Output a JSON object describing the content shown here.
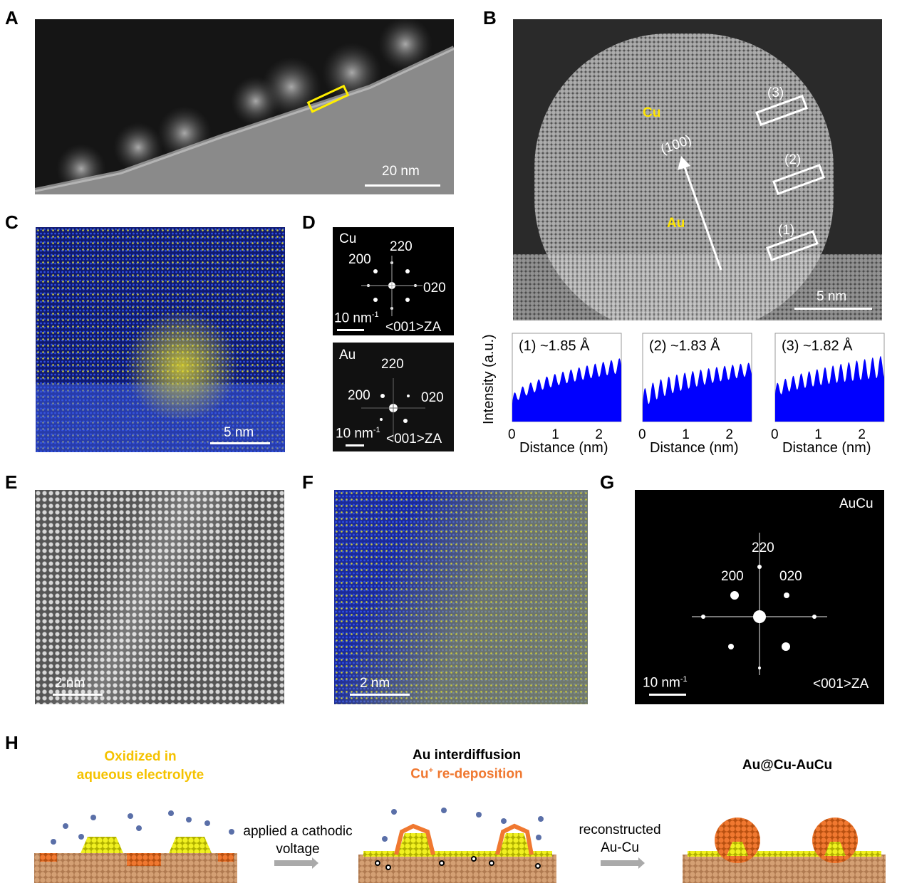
{
  "panel_labels": [
    "A",
    "B",
    "C",
    "D",
    "E",
    "F",
    "G",
    "H"
  ],
  "panelA": {
    "scale_bar": "20 nm"
  },
  "panelB": {
    "labels": {
      "cu": "Cu",
      "au": "Au",
      "direction": "(100)",
      "box1": "(1)",
      "box2": "(2)",
      "box3": "(3)"
    },
    "scale_bar": "5 nm"
  },
  "panelC": {
    "scale_bar": "5 nm"
  },
  "panelD": {
    "cu": {
      "title": "Cu",
      "s200": "200",
      "s220": "220",
      "s020": "020",
      "scale": "10 nm",
      "scale_sup": "-1",
      "za": "<001>ZA"
    },
    "au": {
      "title": "Au",
      "s200": "200",
      "s220": "220",
      "s020": "020",
      "scale": "10 nm",
      "scale_sup": "-1",
      "za": "<001>ZA"
    }
  },
  "panelE": {
    "scale_bar": "2 nm"
  },
  "panelF": {
    "scale_bar": "2 nm"
  },
  "panelG": {
    "title": "AuCu",
    "s200": "200",
    "s220": "220",
    "s020": "020",
    "scale": "10 nm",
    "scale_sup": "-1",
    "za": "<001>ZA"
  },
  "chart_data": [
    {
      "type": "area",
      "title": "(1)   ~1.85 Å",
      "xlabel": "Distance (nm)",
      "ylabel": "Intensity (a.u.)",
      "xlim": [
        0,
        2.5
      ],
      "xticks": [
        "0",
        "1",
        "2"
      ],
      "period_nm": 0.185,
      "baseline": [
        0.15,
        0.55
      ],
      "amplitude": [
        0.12,
        0.17
      ],
      "color": "#0000ff"
    },
    {
      "type": "area",
      "title": "(2)   ~1.83 Å",
      "xlabel": "Distance (nm)",
      "ylabel": "",
      "xlim": [
        0,
        2.5
      ],
      "xticks": [
        "0",
        "1",
        "2"
      ],
      "period_nm": 0.183,
      "baseline": [
        0.1,
        0.52
      ],
      "amplitude": [
        0.22,
        0.15
      ],
      "color": "#0000ff"
    },
    {
      "type": "area",
      "title": "(3)   ~1.82 Å",
      "xlabel": "Distance (nm)",
      "ylabel": "",
      "xlim": [
        0,
        2.5
      ],
      "xticks": [
        "0",
        "1",
        "2"
      ],
      "period_nm": 0.182,
      "baseline": [
        0.25,
        0.5
      ],
      "amplitude": [
        0.15,
        0.25
      ],
      "color": "#0000ff"
    }
  ],
  "panelH": {
    "step1": "Oxidized in\naqueous electrolyte",
    "arrow1": "applied a cathodic\nvoltage",
    "step2a": "Au interdiffusion",
    "step2b_main": "Cu",
    "step2b_sup": "+",
    "step2b_rest": " re-deposition",
    "arrow2": "reconstructed\nAu-Cu",
    "step3": "Au@Cu-AuCu",
    "colors": {
      "yellow": "#f5c200",
      "orange": "#f07830"
    }
  }
}
